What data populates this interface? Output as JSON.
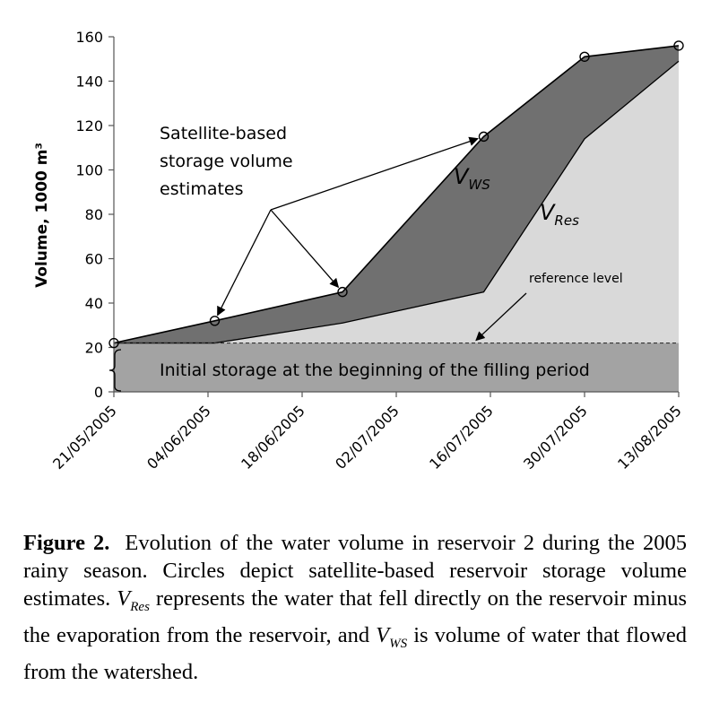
{
  "chart_data": {
    "type": "area",
    "ylabel": "Volume, 1000 m³",
    "ylim": [
      0,
      160
    ],
    "yticks": [
      0,
      20,
      40,
      60,
      80,
      100,
      120,
      140,
      160
    ],
    "xlim": [
      "2005-05-21",
      "2005-08-13"
    ],
    "xticks": [
      "21/05/2005",
      "04/06/2005",
      "18/06/2005",
      "02/07/2005",
      "16/07/2005",
      "30/07/2005",
      "13/08/2005"
    ],
    "grid": false,
    "legend": "none",
    "series": [
      {
        "x": [
          "2005-05-21",
          "2005-06-05",
          "2005-06-24",
          "2005-07-15",
          "2005-07-30",
          "2005-08-13"
        ],
        "values": [
          22,
          32,
          45,
          115,
          151,
          156
        ],
        "marker": "circle"
      },
      {
        "x": [
          "2005-05-21",
          "2005-06-05",
          "2005-06-24",
          "2005-07-15",
          "2005-07-30",
          "2005-08-13"
        ],
        "values": [
          22,
          22,
          31,
          45,
          114,
          149
        ]
      },
      {
        "x": [
          "2005-05-21",
          "2005-08-13"
        ],
        "values": [
          22,
          22
        ],
        "style": "dashed"
      }
    ],
    "annotations": {
      "satellite_lines": [
        "Satellite-based",
        "storage volume",
        "estimates"
      ],
      "vws_base": "V",
      "vws_sub": "WS",
      "vres_base": "V",
      "vres_sub": "Res",
      "reference": "reference level",
      "initial": "Initial storage at the beginning of the filling period"
    },
    "colors": {
      "ws_fill": "#707070",
      "res_fill": "#d9d9d9",
      "initial_fill": "#a3a3a3",
      "line": "#000000"
    }
  },
  "caption": {
    "label": "Figure 2.",
    "text_1": "Evolution of the water volume in reservoir 2 during the 2005 rainy season. Circles depict satellite-based reservoir storage volume estimates.",
    "v1_base": "V",
    "v1_sub": "Res",
    "text_2": "represents the water that fell directly on the reservoir minus the evaporation from the reservoir, and",
    "v2_base": "V",
    "v2_sub": "WS",
    "text_3": "is volume of water that flowed from the watershed."
  }
}
